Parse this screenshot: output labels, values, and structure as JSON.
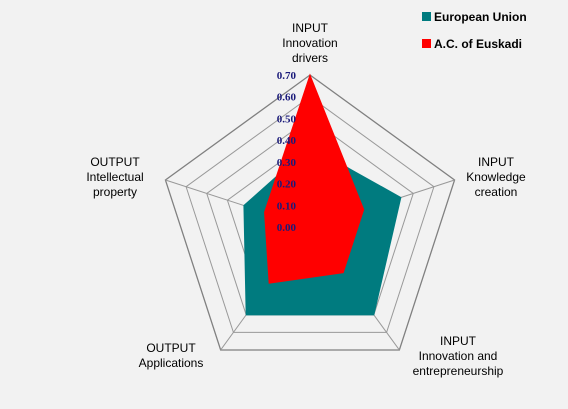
{
  "chart_data": {
    "type": "radar",
    "axes": [
      [
        "INPUT",
        "Innovation",
        "drivers"
      ],
      [
        "INPUT",
        "Knowledge",
        "creation"
      ],
      [
        "INPUT",
        "Innovation and",
        "entrepreneurship"
      ],
      [
        "OUTPUT",
        "Applications"
      ],
      [
        "OUTPUT",
        "Intellectual",
        "property"
      ]
    ],
    "ticks": [
      "0.00",
      "0.10",
      "0.20",
      "0.30",
      "0.40",
      "0.50",
      "0.60",
      "0.70"
    ],
    "rmax": 0.7,
    "series": [
      {
        "name": "European Union",
        "color": "#007b7f",
        "values": [
          0.37,
          0.44,
          0.5,
          0.5,
          0.32
        ]
      },
      {
        "name": "A.C. of Euskadi",
        "color": "#ff0000",
        "values": [
          0.7,
          0.26,
          0.26,
          0.32,
          0.22
        ]
      }
    ],
    "legend_position": "top-right"
  }
}
